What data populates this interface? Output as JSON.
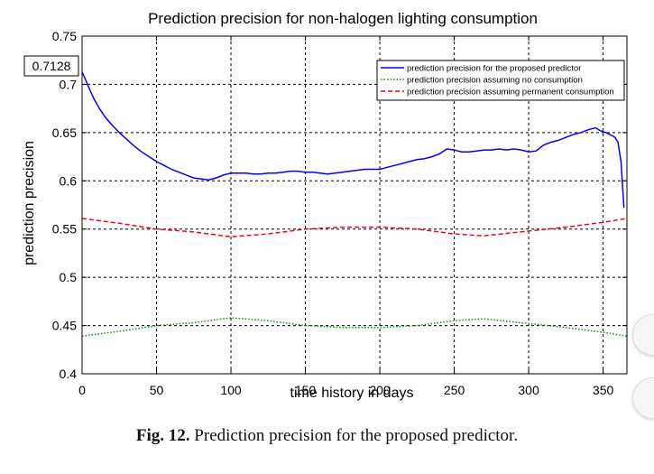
{
  "chart_data": {
    "type": "line",
    "title": "Prediction precision for non-halogen lighting consumption",
    "xlabel": "time history in days",
    "ylabel": "prediction precision",
    "xlim": [
      0,
      366
    ],
    "ylim": [
      0.4,
      0.75
    ],
    "xticks": [
      0,
      50,
      100,
      150,
      200,
      250,
      300,
      350
    ],
    "yticks": [
      0.4,
      0.45,
      0.5,
      0.55,
      0.6,
      0.65,
      0.7,
      0.75
    ],
    "grid": true,
    "legend_position": "top-right",
    "annotation": "0.7128",
    "series": [
      {
        "name": "prediction precision for the proposed predictor",
        "color": "#0000ff",
        "style": "solid",
        "x": [
          0,
          2,
          5,
          8,
          12,
          16,
          20,
          25,
          30,
          35,
          40,
          45,
          50,
          55,
          60,
          65,
          70,
          75,
          80,
          85,
          90,
          95,
          100,
          105,
          110,
          115,
          120,
          125,
          130,
          135,
          140,
          145,
          150,
          155,
          160,
          165,
          170,
          175,
          180,
          185,
          190,
          195,
          200,
          205,
          210,
          215,
          220,
          225,
          230,
          235,
          240,
          245,
          250,
          255,
          260,
          265,
          270,
          275,
          280,
          285,
          290,
          295,
          300,
          305,
          310,
          315,
          320,
          325,
          330,
          335,
          340,
          345,
          348,
          352,
          356,
          358,
          360,
          362,
          364
        ],
        "y": [
          0.7128,
          0.706,
          0.695,
          0.685,
          0.674,
          0.665,
          0.658,
          0.65,
          0.643,
          0.636,
          0.63,
          0.625,
          0.62,
          0.616,
          0.612,
          0.609,
          0.606,
          0.603,
          0.602,
          0.601,
          0.603,
          0.606,
          0.608,
          0.608,
          0.608,
          0.607,
          0.607,
          0.608,
          0.608,
          0.609,
          0.61,
          0.61,
          0.609,
          0.609,
          0.608,
          0.607,
          0.608,
          0.609,
          0.61,
          0.611,
          0.612,
          0.612,
          0.612,
          0.614,
          0.616,
          0.618,
          0.62,
          0.622,
          0.623,
          0.625,
          0.628,
          0.633,
          0.632,
          0.63,
          0.63,
          0.631,
          0.632,
          0.632,
          0.633,
          0.632,
          0.633,
          0.632,
          0.63,
          0.631,
          0.637,
          0.64,
          0.642,
          0.645,
          0.648,
          0.65,
          0.653,
          0.655,
          0.652,
          0.65,
          0.647,
          0.645,
          0.64,
          0.62,
          0.572
        ]
      },
      {
        "name": "prediction precision assuming no consumption",
        "color": "#009900",
        "style": "dotted",
        "x": [
          0,
          25,
          50,
          75,
          100,
          125,
          150,
          175,
          200,
          225,
          250,
          270,
          300,
          325,
          350,
          366
        ],
        "y": [
          0.439,
          0.444,
          0.45,
          0.453,
          0.458,
          0.455,
          0.45,
          0.448,
          0.448,
          0.45,
          0.455,
          0.457,
          0.452,
          0.448,
          0.443,
          0.439
        ]
      },
      {
        "name": "prediction precision assuming permanent consumption",
        "color": "#ff0000",
        "style": "dashed",
        "x": [
          0,
          25,
          50,
          75,
          100,
          125,
          150,
          175,
          200,
          225,
          250,
          270,
          300,
          325,
          350,
          366
        ],
        "y": [
          0.561,
          0.556,
          0.55,
          0.547,
          0.542,
          0.545,
          0.55,
          0.552,
          0.552,
          0.55,
          0.545,
          0.543,
          0.548,
          0.552,
          0.557,
          0.561
        ]
      }
    ]
  },
  "caption": {
    "label": "Fig. 12.",
    "text": " Prediction precision for the proposed predictor."
  }
}
